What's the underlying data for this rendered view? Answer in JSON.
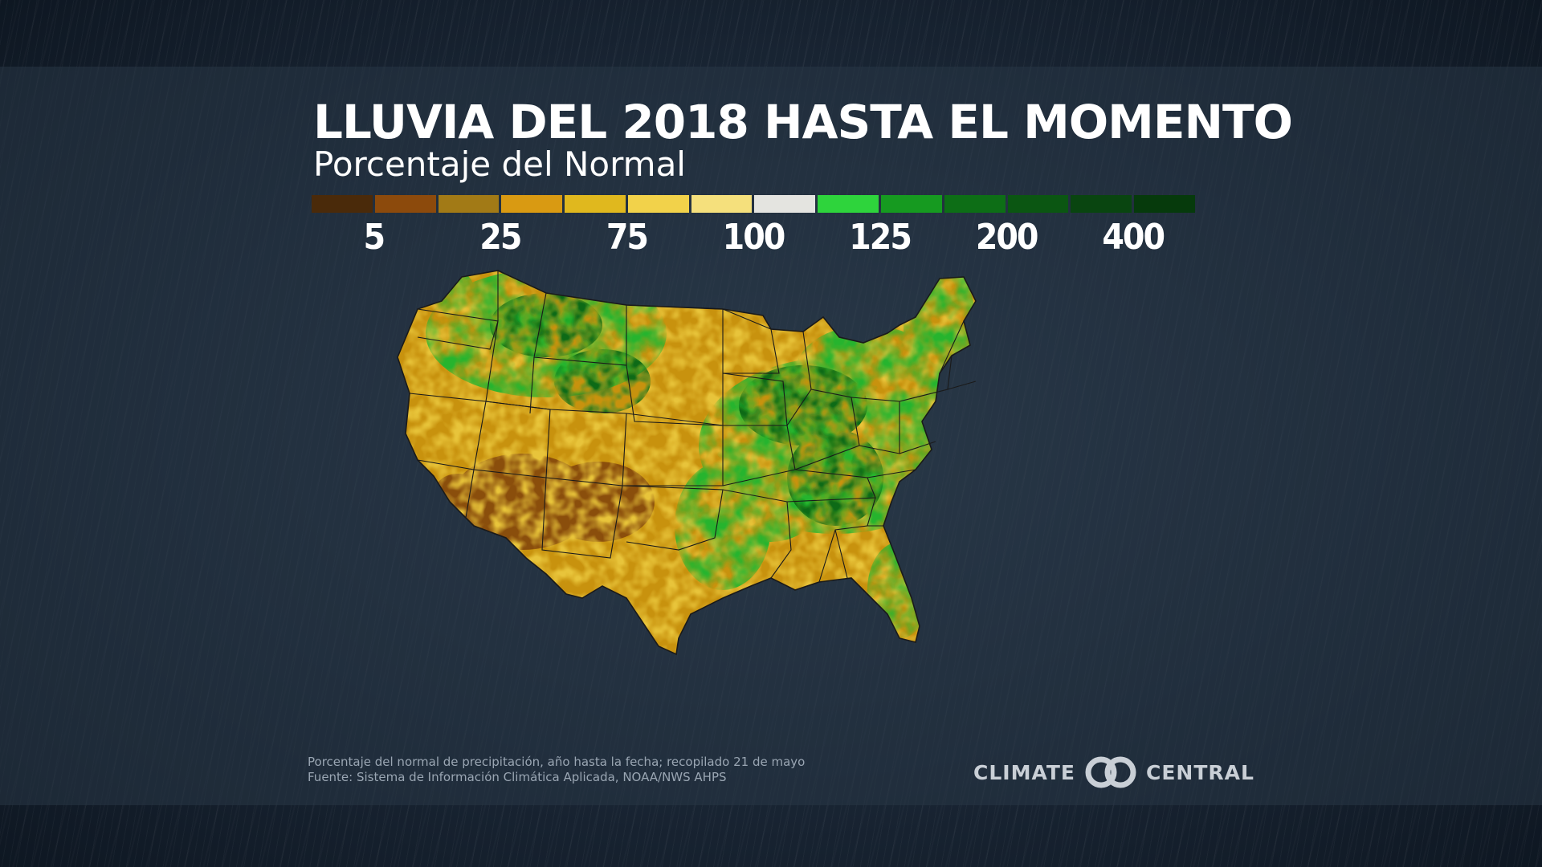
{
  "title": "LLUVIA DEL 2018 HASTA EL MOMENTO",
  "subtitle": "Porcentaje del Normal",
  "legend": {
    "swatches": [
      "#4a2a0a",
      "#8c4a0c",
      "#a27a16",
      "#d99a12",
      "#e0b81e",
      "#f2d24a",
      "#f5e07c",
      "#e4e4e0",
      "#2ed43c",
      "#169a20",
      "#0d6e16",
      "#0b5612",
      "#094510",
      "#063a0c"
    ],
    "ticks": [
      {
        "label": "5",
        "index": 1
      },
      {
        "label": "25",
        "index": 3
      },
      {
        "label": "75",
        "index": 5
      },
      {
        "label": "100",
        "index": 7
      },
      {
        "label": "125",
        "index": 9
      },
      {
        "label": "200",
        "index": 11
      },
      {
        "label": "400",
        "index": 13
      }
    ]
  },
  "footnote": {
    "line1": "Porcentaje del normal de precipitación, año hasta la fecha; recopilado 21 de mayo",
    "line2": "Fuente: Sistema de Información Climática Aplicada, NOAA/NWS AHPS"
  },
  "logo": {
    "left": "CLIMATE",
    "right": "CENTRAL"
  },
  "colors": {
    "dry_dark": "#8a4e0c",
    "dry": "#c8920e",
    "dry_light": "#e8c43a",
    "normal": "#f2dc78",
    "wet": "#26b42e",
    "wet_dark": "#0c6a14",
    "border": "#1a1a1a"
  }
}
